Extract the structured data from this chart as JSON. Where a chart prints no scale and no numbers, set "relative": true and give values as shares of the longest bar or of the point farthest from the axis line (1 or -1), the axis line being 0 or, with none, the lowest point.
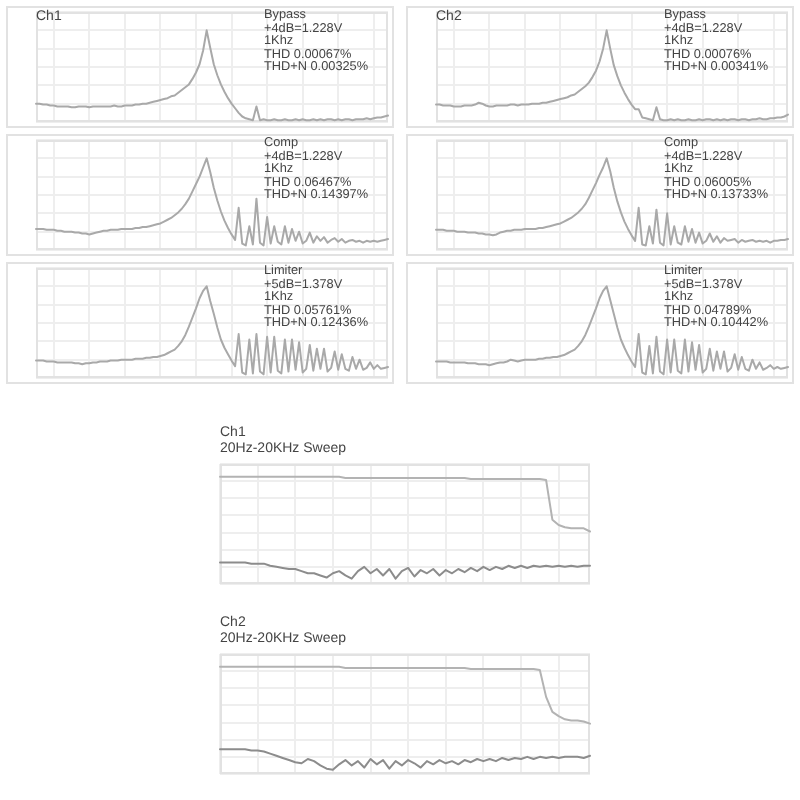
{
  "chart_data": [
    {
      "type": "line",
      "title": "Ch1",
      "relative": true,
      "grid": true,
      "tick_labels": false,
      "marker": "none",
      "categories": [
        null,
        null,
        null,
        null,
        null,
        null,
        null,
        null,
        null,
        null,
        null,
        null,
        null,
        null,
        null,
        null,
        null,
        null,
        null,
        null,
        null,
        null,
        null,
        null,
        null,
        null,
        null,
        null,
        null,
        null,
        null,
        null,
        null,
        null,
        null,
        null,
        null,
        null,
        null,
        null,
        null,
        null,
        null,
        null,
        null,
        null,
        null,
        null,
        null,
        null,
        null,
        null,
        null,
        null,
        null,
        null,
        null,
        null,
        null,
        null,
        null,
        null,
        null,
        null,
        null,
        null,
        null,
        null,
        null,
        null,
        null,
        null,
        null,
        null,
        null,
        null,
        null,
        null,
        null,
        null,
        null,
        null,
        null,
        null,
        null,
        null,
        null,
        null,
        null,
        null,
        null,
        null,
        null,
        null,
        null,
        null,
        null,
        null,
        null,
        null
      ],
      "series": [
        {
          "color": "#a9a9a9",
          "values": [
            0.2,
            0.2,
            0.19,
            0.19,
            0.18,
            0.18,
            0.17,
            0.17,
            0.17,
            0.17,
            0.16,
            0.16,
            0.17,
            0.17,
            0.17,
            0.16,
            0.17,
            0.17,
            0.17,
            0.17,
            0.17,
            0.17,
            0.18,
            0.17,
            0.17,
            0.18,
            0.18,
            0.18,
            0.19,
            0.19,
            0.2,
            0.2,
            0.21,
            0.22,
            0.23,
            0.24,
            0.25,
            0.26,
            0.28,
            0.29,
            0.32,
            0.35,
            0.38,
            0.41,
            0.47,
            0.54,
            0.63,
            0.78,
            1,
            0.81,
            0.63,
            0.51,
            0.41,
            0.33,
            0.26,
            0.2,
            0.15,
            0.1,
            0.06,
            0.04,
            0.03,
            0.02,
            0.17,
            0.02,
            0.03,
            0.02,
            0.02,
            0.03,
            0.02,
            0.02,
            0.03,
            0.02,
            0.02,
            0.03,
            0.02,
            0.03,
            0.02,
            0.02,
            0.03,
            0.02,
            0.03,
            0.02,
            0.03,
            0.03,
            0.02,
            0.03,
            0.02,
            0.03,
            0.03,
            0.02,
            0.03,
            0.03,
            0.03,
            0.04,
            0.03,
            0.04,
            0.05,
            0.05,
            0.06,
            0.07
          ]
        }
      ],
      "annotations": [
        "Bypass",
        "+4dB=1.228V",
        "1Khz",
        "THD 0.00067%",
        "THD+N 0.00325%"
      ]
    },
    {
      "type": "line",
      "title": "Ch2",
      "relative": true,
      "grid": true,
      "tick_labels": false,
      "marker": "none",
      "categories": [
        null,
        null,
        null,
        null,
        null,
        null,
        null,
        null,
        null,
        null,
        null,
        null,
        null,
        null,
        null,
        null,
        null,
        null,
        null,
        null,
        null,
        null,
        null,
        null,
        null,
        null,
        null,
        null,
        null,
        null,
        null,
        null,
        null,
        null,
        null,
        null,
        null,
        null,
        null,
        null,
        null,
        null,
        null,
        null,
        null,
        null,
        null,
        null,
        null,
        null,
        null,
        null,
        null,
        null,
        null,
        null,
        null,
        null,
        null,
        null,
        null,
        null,
        null,
        null,
        null,
        null,
        null,
        null,
        null,
        null,
        null,
        null,
        null,
        null,
        null,
        null,
        null,
        null,
        null,
        null,
        null,
        null,
        null,
        null,
        null,
        null,
        null,
        null,
        null,
        null,
        null,
        null,
        null,
        null,
        null,
        null,
        null,
        null,
        null,
        null
      ],
      "series": [
        {
          "color": "#a9a9a9",
          "values": [
            0.19,
            0.19,
            0.18,
            0.18,
            0.18,
            0.17,
            0.17,
            0.17,
            0.18,
            0.18,
            0.18,
            0.19,
            0.21,
            0.2,
            0.18,
            0.17,
            0.17,
            0.18,
            0.18,
            0.18,
            0.18,
            0.19,
            0.19,
            0.18,
            0.19,
            0.19,
            0.19,
            0.2,
            0.2,
            0.2,
            0.21,
            0.21,
            0.22,
            0.23,
            0.24,
            0.25,
            0.26,
            0.27,
            0.29,
            0.3,
            0.33,
            0.36,
            0.39,
            0.43,
            0.49,
            0.56,
            0.66,
            0.8,
            1,
            0.8,
            0.62,
            0.5,
            0.4,
            0.32,
            0.25,
            0.19,
            0.14,
            0.14,
            0.05,
            0.04,
            0.03,
            0.02,
            0.16,
            0.03,
            0.02,
            0.02,
            0.03,
            0.02,
            0.03,
            0.02,
            0.02,
            0.03,
            0.02,
            0.02,
            0.03,
            0.02,
            0.03,
            0.03,
            0.02,
            0.03,
            0.02,
            0.03,
            0.02,
            0.03,
            0.03,
            0.02,
            0.03,
            0.03,
            0.02,
            0.03,
            0.03,
            0.04,
            0.03,
            0.03,
            0.04,
            0.04,
            0.05,
            0.05,
            0.06,
            0.08
          ]
        }
      ],
      "annotations": [
        "Bypass",
        "+4dB=1.228V",
        "1Khz",
        "THD 0.00076%",
        "THD+N 0.00341%"
      ]
    },
    {
      "type": "line",
      "relative": true,
      "grid": true,
      "tick_labels": false,
      "marker": "none",
      "categories": [
        null,
        null,
        null,
        null,
        null,
        null,
        null,
        null,
        null,
        null,
        null,
        null,
        null,
        null,
        null,
        null,
        null,
        null,
        null,
        null,
        null,
        null,
        null,
        null,
        null,
        null,
        null,
        null,
        null,
        null,
        null,
        null,
        null,
        null,
        null,
        null,
        null,
        null,
        null,
        null,
        null,
        null,
        null,
        null,
        null,
        null,
        null,
        null,
        null,
        null,
        null,
        null,
        null,
        null,
        null,
        null,
        null,
        null,
        null,
        null,
        null,
        null,
        null,
        null,
        null,
        null,
        null,
        null,
        null,
        null,
        null,
        null,
        null,
        null,
        null,
        null,
        null,
        null,
        null,
        null,
        null,
        null,
        null,
        null,
        null,
        null,
        null,
        null,
        null,
        null,
        null,
        null,
        null,
        null,
        null,
        null,
        null,
        null,
        null,
        null
      ],
      "series": [
        {
          "color": "#a9a9a9",
          "values": [
            0.23,
            0.23,
            0.23,
            0.22,
            0.22,
            0.22,
            0.21,
            0.21,
            0.2,
            0.2,
            0.2,
            0.19,
            0.19,
            0.18,
            0.18,
            0.17,
            0.18,
            0.19,
            0.2,
            0.21,
            0.21,
            0.22,
            0.22,
            0.22,
            0.23,
            0.23,
            0.23,
            0.23,
            0.24,
            0.24,
            0.25,
            0.25,
            0.26,
            0.27,
            0.28,
            0.29,
            0.31,
            0.33,
            0.35,
            0.38,
            0.41,
            0.45,
            0.5,
            0.56,
            0.64,
            0.72,
            0.8,
            0.9,
            1,
            0.85,
            0.68,
            0.54,
            0.42,
            0.32,
            0.24,
            0.17,
            0.11,
            0.46,
            0.07,
            0.05,
            0.26,
            0.06,
            0.56,
            0.08,
            0.05,
            0.36,
            0.07,
            0.26,
            0.09,
            0.06,
            0.26,
            0.08,
            0.23,
            0.1,
            0.2,
            0.07,
            0.1,
            0.19,
            0.08,
            0.15,
            0.1,
            0.14,
            0.08,
            0.11,
            0.13,
            0.09,
            0.12,
            0.08,
            0.1,
            0.11,
            0.09,
            0.1,
            0.08,
            0.1,
            0.09,
            0.1,
            0.09,
            0.1,
            0.11,
            0.12
          ]
        }
      ],
      "annotations": [
        "Comp",
        "+4dB=1.228V",
        "1Khz",
        "THD 0.06467%",
        "THD+N 0.14397%"
      ]
    },
    {
      "type": "line",
      "relative": true,
      "grid": true,
      "tick_labels": false,
      "marker": "none",
      "categories": [
        null,
        null,
        null,
        null,
        null,
        null,
        null,
        null,
        null,
        null,
        null,
        null,
        null,
        null,
        null,
        null,
        null,
        null,
        null,
        null,
        null,
        null,
        null,
        null,
        null,
        null,
        null,
        null,
        null,
        null,
        null,
        null,
        null,
        null,
        null,
        null,
        null,
        null,
        null,
        null,
        null,
        null,
        null,
        null,
        null,
        null,
        null,
        null,
        null,
        null,
        null,
        null,
        null,
        null,
        null,
        null,
        null,
        null,
        null,
        null,
        null,
        null,
        null,
        null,
        null,
        null,
        null,
        null,
        null,
        null,
        null,
        null,
        null,
        null,
        null,
        null,
        null,
        null,
        null,
        null,
        null,
        null,
        null,
        null,
        null,
        null,
        null,
        null,
        null,
        null,
        null,
        null,
        null,
        null,
        null,
        null,
        null,
        null,
        null,
        null
      ],
      "series": [
        {
          "color": "#a9a9a9",
          "values": [
            0.22,
            0.22,
            0.22,
            0.21,
            0.21,
            0.21,
            0.2,
            0.2,
            0.2,
            0.19,
            0.19,
            0.19,
            0.18,
            0.18,
            0.17,
            0.17,
            0.16,
            0.17,
            0.19,
            0.2,
            0.21,
            0.21,
            0.22,
            0.22,
            0.22,
            0.23,
            0.23,
            0.23,
            0.23,
            0.24,
            0.24,
            0.25,
            0.26,
            0.27,
            0.28,
            0.29,
            0.31,
            0.33,
            0.35,
            0.38,
            0.41,
            0.45,
            0.5,
            0.57,
            0.65,
            0.73,
            0.82,
            0.9,
            1,
            0.86,
            0.68,
            0.53,
            0.41,
            0.31,
            0.23,
            0.16,
            0.1,
            0.46,
            0.06,
            0.05,
            0.26,
            0.07,
            0.44,
            0.08,
            0.05,
            0.4,
            0.06,
            0.26,
            0.08,
            0.06,
            0.26,
            0.09,
            0.23,
            0.08,
            0.19,
            0.07,
            0.1,
            0.18,
            0.09,
            0.15,
            0.08,
            0.13,
            0.1,
            0.11,
            0.12,
            0.08,
            0.11,
            0.09,
            0.1,
            0.11,
            0.09,
            0.1,
            0.09,
            0.1,
            0.08,
            0.1,
            0.1,
            0.11,
            0.11,
            0.12
          ]
        }
      ],
      "annotations": [
        "Comp",
        "+4dB=1.228V",
        "1Khz",
        "THD 0.06005%",
        "THD+N 0.13733%"
      ]
    },
    {
      "type": "line",
      "relative": true,
      "grid": true,
      "tick_labels": false,
      "marker": "none",
      "categories": [
        null,
        null,
        null,
        null,
        null,
        null,
        null,
        null,
        null,
        null,
        null,
        null,
        null,
        null,
        null,
        null,
        null,
        null,
        null,
        null,
        null,
        null,
        null,
        null,
        null,
        null,
        null,
        null,
        null,
        null,
        null,
        null,
        null,
        null,
        null,
        null,
        null,
        null,
        null,
        null,
        null,
        null,
        null,
        null,
        null,
        null,
        null,
        null,
        null,
        null,
        null,
        null,
        null,
        null,
        null,
        null,
        null,
        null,
        null,
        null,
        null,
        null,
        null,
        null,
        null,
        null,
        null,
        null,
        null,
        null,
        null,
        null,
        null,
        null,
        null,
        null,
        null,
        null,
        null,
        null,
        null,
        null,
        null,
        null,
        null,
        null,
        null,
        null,
        null,
        null,
        null,
        null,
        null,
        null,
        null,
        null,
        null,
        null,
        null,
        null
      ],
      "series": [
        {
          "color": "#a9a9a9",
          "values": [
            0.19,
            0.19,
            0.19,
            0.18,
            0.18,
            0.18,
            0.17,
            0.17,
            0.17,
            0.17,
            0.17,
            0.16,
            0.16,
            0.15,
            0.16,
            0.16,
            0.17,
            0.17,
            0.18,
            0.18,
            0.18,
            0.19,
            0.19,
            0.19,
            0.2,
            0.2,
            0.2,
            0.2,
            0.21,
            0.21,
            0.21,
            0.22,
            0.22,
            0.23,
            0.23,
            0.24,
            0.25,
            0.27,
            0.29,
            0.31,
            0.35,
            0.4,
            0.47,
            0.56,
            0.66,
            0.76,
            0.87,
            0.95,
            1,
            0.84,
            0.7,
            0.55,
            0.42,
            0.33,
            0.26,
            0.19,
            0.13,
            0.48,
            0.06,
            0.04,
            0.42,
            0.05,
            0.48,
            0.07,
            0.04,
            0.45,
            0.06,
            0.45,
            0.08,
            0.05,
            0.42,
            0.07,
            0.42,
            0.09,
            0.39,
            0.06,
            0.1,
            0.36,
            0.08,
            0.32,
            0.1,
            0.32,
            0.07,
            0.11,
            0.29,
            0.09,
            0.26,
            0.1,
            0.08,
            0.23,
            0.1,
            0.2,
            0.09,
            0.11,
            0.17,
            0.1,
            0.14,
            0.1,
            0.11,
            0.12
          ]
        }
      ],
      "annotations": [
        "Limiter",
        "+5dB=1.378V",
        "1Khz",
        "THD 0.05761%",
        "THD+N 0.12436%"
      ]
    },
    {
      "type": "line",
      "relative": true,
      "grid": true,
      "tick_labels": false,
      "marker": "none",
      "categories": [
        null,
        null,
        null,
        null,
        null,
        null,
        null,
        null,
        null,
        null,
        null,
        null,
        null,
        null,
        null,
        null,
        null,
        null,
        null,
        null,
        null,
        null,
        null,
        null,
        null,
        null,
        null,
        null,
        null,
        null,
        null,
        null,
        null,
        null,
        null,
        null,
        null,
        null,
        null,
        null,
        null,
        null,
        null,
        null,
        null,
        null,
        null,
        null,
        null,
        null,
        null,
        null,
        null,
        null,
        null,
        null,
        null,
        null,
        null,
        null,
        null,
        null,
        null,
        null,
        null,
        null,
        null,
        null,
        null,
        null,
        null,
        null,
        null,
        null,
        null,
        null,
        null,
        null,
        null,
        null,
        null,
        null,
        null,
        null,
        null,
        null,
        null,
        null,
        null,
        null,
        null,
        null,
        null,
        null,
        null,
        null,
        null,
        null,
        null,
        null
      ],
      "series": [
        {
          "color": "#a9a9a9",
          "values": [
            0.18,
            0.18,
            0.18,
            0.18,
            0.17,
            0.17,
            0.17,
            0.17,
            0.17,
            0.16,
            0.16,
            0.16,
            0.15,
            0.15,
            0.15,
            0.14,
            0.15,
            0.16,
            0.17,
            0.17,
            0.18,
            0.2,
            0.19,
            0.18,
            0.19,
            0.2,
            0.2,
            0.2,
            0.2,
            0.21,
            0.21,
            0.22,
            0.22,
            0.23,
            0.23,
            0.24,
            0.25,
            0.27,
            0.29,
            0.31,
            0.35,
            0.4,
            0.47,
            0.56,
            0.66,
            0.76,
            0.87,
            0.95,
            1,
            0.85,
            0.7,
            0.55,
            0.42,
            0.33,
            0.25,
            0.18,
            0.12,
            0.48,
            0.06,
            0.04,
            0.35,
            0.05,
            0.45,
            0.07,
            0.04,
            0.42,
            0.06,
            0.42,
            0.08,
            0.05,
            0.42,
            0.07,
            0.39,
            0.09,
            0.36,
            0.06,
            0.1,
            0.32,
            0.08,
            0.29,
            0.1,
            0.29,
            0.07,
            0.11,
            0.26,
            0.09,
            0.23,
            0.1,
            0.08,
            0.2,
            0.1,
            0.17,
            0.09,
            0.11,
            0.14,
            0.1,
            0.12,
            0.1,
            0.11,
            0.12
          ]
        }
      ],
      "annotations": [
        "Limiter",
        "+5dB=1.378V",
        "1Khz",
        "THD 0.04789%",
        "THD+N 0.10442%"
      ]
    },
    {
      "type": "line",
      "title": "Ch1",
      "subtitle": "20Hz-20KHz Sweep",
      "relative": true,
      "grid": true,
      "tick_labels": false,
      "marker": "none",
      "categories": [
        null,
        null,
        null,
        null,
        null,
        null,
        null,
        null,
        null,
        null,
        null,
        null,
        null,
        null,
        null,
        null,
        null,
        null,
        null,
        null,
        null,
        null,
        null,
        null,
        null,
        null,
        null,
        null,
        null,
        null,
        null,
        null,
        null,
        null,
        null,
        null,
        null,
        null,
        null,
        null,
        null,
        null,
        null,
        null,
        null,
        null,
        null,
        null,
        null,
        null,
        null,
        null,
        null,
        null,
        null,
        null,
        null,
        null,
        null,
        null
      ],
      "series": [
        {
          "color": "#b3b3b3",
          "values": [
            1,
            1,
            1,
            1,
            1,
            1,
            1,
            1,
            1,
            1,
            1,
            1,
            1,
            1,
            1,
            1,
            1,
            1,
            1,
            1,
            0.99,
            0.99,
            0.99,
            0.99,
            0.99,
            0.99,
            0.99,
            0.99,
            0.99,
            0.99,
            0.99,
            0.99,
            0.99,
            0.99,
            0.99,
            0.99,
            0.99,
            0.99,
            0.99,
            0.99,
            0.98,
            0.98,
            0.98,
            0.98,
            0.98,
            0.98,
            0.98,
            0.98,
            0.98,
            0.98,
            0.98,
            0.98,
            0.97,
            0.6,
            0.55,
            0.53,
            0.52,
            0.52,
            0.52,
            0.49
          ]
        },
        {
          "color": "#8c8c8c",
          "values": [
            0.2,
            0.2,
            0.2,
            0.2,
            0.2,
            0.19,
            0.19,
            0.19,
            0.17,
            0.16,
            0.15,
            0.14,
            0.14,
            0.12,
            0.1,
            0.1,
            0.08,
            0.06,
            0.1,
            0.12,
            0.08,
            0.05,
            0.12,
            0.16,
            0.1,
            0.14,
            0.08,
            0.14,
            0.05,
            0.12,
            0.15,
            0.07,
            0.13,
            0.1,
            0.14,
            0.08,
            0.13,
            0.1,
            0.14,
            0.11,
            0.15,
            0.12,
            0.16,
            0.13,
            0.16,
            0.14,
            0.17,
            0.15,
            0.17,
            0.15,
            0.17,
            0.16,
            0.17,
            0.16,
            0.17,
            0.16,
            0.17,
            0.16,
            0.17,
            0.17
          ]
        }
      ]
    },
    {
      "type": "line",
      "title": "Ch2",
      "subtitle": "20Hz-20KHz Sweep",
      "relative": true,
      "grid": true,
      "tick_labels": false,
      "marker": "none",
      "categories": [
        null,
        null,
        null,
        null,
        null,
        null,
        null,
        null,
        null,
        null,
        null,
        null,
        null,
        null,
        null,
        null,
        null,
        null,
        null,
        null,
        null,
        null,
        null,
        null,
        null,
        null,
        null,
        null,
        null,
        null,
        null,
        null,
        null,
        null,
        null,
        null,
        null,
        null,
        null,
        null,
        null,
        null,
        null,
        null,
        null,
        null,
        null,
        null,
        null,
        null,
        null,
        null,
        null,
        null,
        null,
        null,
        null,
        null,
        null,
        null
      ],
      "series": [
        {
          "color": "#b3b3b3",
          "values": [
            1,
            1,
            1,
            1,
            1,
            1,
            1,
            1,
            1,
            1,
            1,
            1,
            1,
            1,
            1,
            1,
            1,
            1,
            1,
            1,
            0.99,
            0.99,
            0.99,
            0.99,
            0.99,
            0.99,
            0.99,
            0.99,
            0.99,
            0.99,
            0.99,
            0.99,
            0.99,
            0.99,
            0.99,
            0.99,
            0.99,
            0.99,
            0.99,
            0.99,
            0.98,
            0.98,
            0.98,
            0.98,
            0.98,
            0.98,
            0.98,
            0.98,
            0.98,
            0.98,
            0.98,
            0.97,
            0.72,
            0.58,
            0.54,
            0.51,
            0.5,
            0.5,
            0.49,
            0.47
          ]
        },
        {
          "color": "#8c8c8c",
          "values": [
            0.23,
            0.23,
            0.23,
            0.23,
            0.23,
            0.22,
            0.22,
            0.21,
            0.19,
            0.17,
            0.15,
            0.13,
            0.11,
            0.1,
            0.14,
            0.12,
            0.08,
            0.05,
            0.04,
            0.09,
            0.13,
            0.08,
            0.12,
            0.06,
            0.14,
            0.09,
            0.13,
            0.05,
            0.12,
            0.08,
            0.13,
            0.1,
            0.06,
            0.12,
            0.09,
            0.13,
            0.1,
            0.12,
            0.09,
            0.13,
            0.11,
            0.14,
            0.12,
            0.14,
            0.12,
            0.15,
            0.13,
            0.15,
            0.14,
            0.16,
            0.14,
            0.16,
            0.15,
            0.16,
            0.15,
            0.16,
            0.16,
            0.16,
            0.15,
            0.17
          ]
        }
      ]
    }
  ]
}
